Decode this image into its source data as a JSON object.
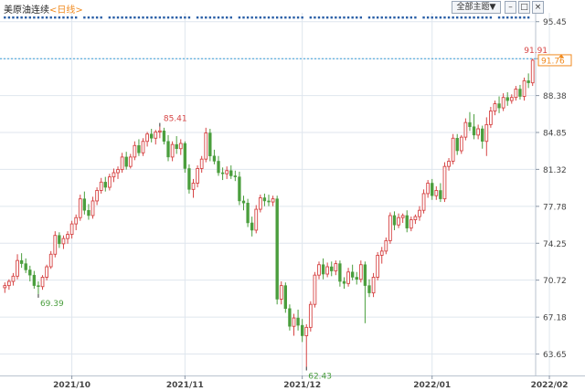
{
  "header": {
    "instrument": "美原油连续",
    "timeframe": "<日线>"
  },
  "toolbar": {
    "main_chart_select": "全部主题▼",
    "btn_minimize": "–",
    "btn_restore": "□",
    "btn_close": "×"
  },
  "colors": {
    "up": "#d64444",
    "down": "#4a9e3d",
    "grid": "#dfe6ee",
    "axis_text": "#444444",
    "last_price_bg": "#f08a1f",
    "event_dot": "#2a5fa6"
  },
  "chart_data": {
    "type": "candlestick",
    "title": "美原油连续 <日线>",
    "ylim": [
      61.6,
      96.3
    ],
    "y_ticks": [
      95.45,
      91.91,
      88.38,
      84.85,
      81.32,
      77.78,
      74.25,
      70.72,
      67.18,
      63.65
    ],
    "x_ticks": [
      {
        "label": "2021/10",
        "index": 16
      },
      {
        "label": "2021/11",
        "index": 43
      },
      {
        "label": "2021/12",
        "index": 71
      },
      {
        "label": "2022/01",
        "index": 102
      },
      {
        "label": "2022/02",
        "index": 130
      }
    ],
    "last_price": 91.76,
    "max_label": {
      "value": 91.91,
      "index": 130
    },
    "annotations": [
      {
        "text": "85.41",
        "index": 37,
        "value": 85.41,
        "type": "high"
      },
      {
        "text": "69.39",
        "index": 8,
        "value": 69.39,
        "type": "low"
      },
      {
        "text": "62.43",
        "index": 72,
        "value": 62.43,
        "type": "low"
      },
      {
        "text": "91.91",
        "index": 130,
        "value": 91.91,
        "type": "high"
      }
    ],
    "candles": [
      [
        70.0,
        70.5,
        69.5,
        70.2
      ],
      [
        70.2,
        70.8,
        69.8,
        70.6
      ],
      [
        70.6,
        71.4,
        70.2,
        71.1
      ],
      [
        71.1,
        73.2,
        70.8,
        72.6
      ],
      [
        72.6,
        73.3,
        71.9,
        72.3
      ],
      [
        72.3,
        72.8,
        71.4,
        71.7
      ],
      [
        71.7,
        72.1,
        70.6,
        71.2
      ],
      [
        71.2,
        71.6,
        69.9,
        70.2
      ],
      [
        70.2,
        70.6,
        69.39,
        70.1
      ],
      [
        70.1,
        71.2,
        69.8,
        71.0
      ],
      [
        71.0,
        72.2,
        70.7,
        72.0
      ],
      [
        72.0,
        73.5,
        71.8,
        73.2
      ],
      [
        73.2,
        75.4,
        72.9,
        75.0
      ],
      [
        75.0,
        75.3,
        73.8,
        74.2
      ],
      [
        74.2,
        75.0,
        73.7,
        74.7
      ],
      [
        74.7,
        75.4,
        74.2,
        75.1
      ],
      [
        75.1,
        76.4,
        74.7,
        76.1
      ],
      [
        76.1,
        77.0,
        75.5,
        76.7
      ],
      [
        76.7,
        78.9,
        76.4,
        78.5
      ],
      [
        78.5,
        79.2,
        77.0,
        77.4
      ],
      [
        77.4,
        78.0,
        76.5,
        76.9
      ],
      [
        76.9,
        78.7,
        76.6,
        78.3
      ],
      [
        78.3,
        79.6,
        77.9,
        79.3
      ],
      [
        79.3,
        80.5,
        79.0,
        80.1
      ],
      [
        80.1,
        80.6,
        79.2,
        79.6
      ],
      [
        79.6,
        80.9,
        79.3,
        80.6
      ],
      [
        80.6,
        81.4,
        80.1,
        81.0
      ],
      [
        81.0,
        81.6,
        80.4,
        81.3
      ],
      [
        81.3,
        82.9,
        81.0,
        82.5
      ],
      [
        82.5,
        83.0,
        81.3,
        81.6
      ],
      [
        81.6,
        82.8,
        81.4,
        82.5
      ],
      [
        82.5,
        84.0,
        82.2,
        83.6
      ],
      [
        83.6,
        84.2,
        82.6,
        82.9
      ],
      [
        82.9,
        84.3,
        82.6,
        84.0
      ],
      [
        84.0,
        84.9,
        83.5,
        84.7
      ],
      [
        84.7,
        85.2,
        83.9,
        84.3
      ],
      [
        84.3,
        85.1,
        83.7,
        84.9
      ],
      [
        84.9,
        85.41,
        84.3,
        85.0
      ],
      [
        85.0,
        85.3,
        83.7,
        84.0
      ],
      [
        84.0,
        84.6,
        82.1,
        82.5
      ],
      [
        82.5,
        84.0,
        82.1,
        83.7
      ],
      [
        83.7,
        84.5,
        82.8,
        83.3
      ],
      [
        83.3,
        84.2,
        82.7,
        83.8
      ],
      [
        83.8,
        84.0,
        81.0,
        81.4
      ],
      [
        81.4,
        81.8,
        79.0,
        79.4
      ],
      [
        79.4,
        80.4,
        78.6,
        80.0
      ],
      [
        80.0,
        81.7,
        79.6,
        81.4
      ],
      [
        81.4,
        82.6,
        81.0,
        82.3
      ],
      [
        82.3,
        85.3,
        82.0,
        84.8
      ],
      [
        84.8,
        85.2,
        82.1,
        82.6
      ],
      [
        82.6,
        83.2,
        81.8,
        82.1
      ],
      [
        82.1,
        82.6,
        80.7,
        81.0
      ],
      [
        81.0,
        81.5,
        80.3,
        80.9
      ],
      [
        80.9,
        81.6,
        80.4,
        81.2
      ],
      [
        81.2,
        81.7,
        80.4,
        80.7
      ],
      [
        80.7,
        81.2,
        80.2,
        80.6
      ],
      [
        80.6,
        81.1,
        77.9,
        78.3
      ],
      [
        78.3,
        78.8,
        77.4,
        78.1
      ],
      [
        78.1,
        78.5,
        75.8,
        76.2
      ],
      [
        76.2,
        76.8,
        74.9,
        75.5
      ],
      [
        75.5,
        77.9,
        75.2,
        77.5
      ],
      [
        77.5,
        78.9,
        77.2,
        78.6
      ],
      [
        78.6,
        79.0,
        77.8,
        78.3
      ],
      [
        78.3,
        78.9,
        77.8,
        78.2
      ],
      [
        78.2,
        78.8,
        77.8,
        78.5
      ],
      [
        78.5,
        78.8,
        68.4,
        68.9
      ],
      [
        68.9,
        70.6,
        68.4,
        70.2
      ],
      [
        70.2,
        70.5,
        67.6,
        68.0
      ],
      [
        68.0,
        68.4,
        65.9,
        66.3
      ],
      [
        66.3,
        67.5,
        65.4,
        67.1
      ],
      [
        67.1,
        67.9,
        65.9,
        66.4
      ],
      [
        66.4,
        67.0,
        64.8,
        65.4
      ],
      [
        65.4,
        66.5,
        62.43,
        66.2
      ],
      [
        66.2,
        68.7,
        65.8,
        68.4
      ],
      [
        68.4,
        71.5,
        68.1,
        71.2
      ],
      [
        71.2,
        72.5,
        70.8,
        72.2
      ],
      [
        72.2,
        72.8,
        70.8,
        71.3
      ],
      [
        71.3,
        72.4,
        71.0,
        72.0
      ],
      [
        72.0,
        72.5,
        71.1,
        71.6
      ],
      [
        71.6,
        72.6,
        71.2,
        72.3
      ],
      [
        72.3,
        72.6,
        70.1,
        70.6
      ],
      [
        70.6,
        71.0,
        69.9,
        70.4
      ],
      [
        70.4,
        71.9,
        70.1,
        71.5
      ],
      [
        71.5,
        72.2,
        70.7,
        71.0
      ],
      [
        71.0,
        71.5,
        70.3,
        70.8
      ],
      [
        70.8,
        72.6,
        70.5,
        72.2
      ],
      [
        72.2,
        72.5,
        66.6,
        70.2
      ],
      [
        70.2,
        70.8,
        69.1,
        69.5
      ],
      [
        69.5,
        71.4,
        69.1,
        71.0
      ],
      [
        71.0,
        73.4,
        70.7,
        73.1
      ],
      [
        73.1,
        73.9,
        72.3,
        73.5
      ],
      [
        73.5,
        74.8,
        73.2,
        74.5
      ],
      [
        74.5,
        77.2,
        74.2,
        76.9
      ],
      [
        76.9,
        77.3,
        75.5,
        76.0
      ],
      [
        76.0,
        77.1,
        75.7,
        76.7
      ],
      [
        76.7,
        77.1,
        76.2,
        76.9
      ],
      [
        76.9,
        77.4,
        75.3,
        75.7
      ],
      [
        75.7,
        76.8,
        75.4,
        76.5
      ],
      [
        76.5,
        77.0,
        76.1,
        76.8
      ],
      [
        76.8,
        77.8,
        76.4,
        77.4
      ],
      [
        77.4,
        79.4,
        77.1,
        79.0
      ],
      [
        79.0,
        80.3,
        78.6,
        80.0
      ],
      [
        80.0,
        80.4,
        78.4,
        78.8
      ],
      [
        78.8,
        79.7,
        78.4,
        79.3
      ],
      [
        79.3,
        80.0,
        78.2,
        78.5
      ],
      [
        78.5,
        82.0,
        78.2,
        81.6
      ],
      [
        81.6,
        82.4,
        81.2,
        82.1
      ],
      [
        82.1,
        84.7,
        81.8,
        84.3
      ],
      [
        84.3,
        84.7,
        82.7,
        83.1
      ],
      [
        83.1,
        84.6,
        82.8,
        84.4
      ],
      [
        84.4,
        86.2,
        84.1,
        85.8
      ],
      [
        85.8,
        86.8,
        85.0,
        85.4
      ],
      [
        85.4,
        86.6,
        84.2,
        84.6
      ],
      [
        84.6,
        85.6,
        84.2,
        85.2
      ],
      [
        85.2,
        85.5,
        83.3,
        84.0
      ],
      [
        84.0,
        86.3,
        82.6,
        85.6
      ],
      [
        85.6,
        87.3,
        85.3,
        86.9
      ],
      [
        86.9,
        87.9,
        86.5,
        87.6
      ],
      [
        87.6,
        88.3,
        86.7,
        87.2
      ],
      [
        87.2,
        88.6,
        86.9,
        88.2
      ],
      [
        88.2,
        88.7,
        87.4,
        87.9
      ],
      [
        87.9,
        88.5,
        87.6,
        88.2
      ],
      [
        88.2,
        89.3,
        87.9,
        89.0
      ],
      [
        89.0,
        89.4,
        88.0,
        88.3
      ],
      [
        88.3,
        90.1,
        87.9,
        89.8
      ],
      [
        89.8,
        90.5,
        89.1,
        89.6
      ],
      [
        89.6,
        91.91,
        89.3,
        91.76
      ]
    ]
  }
}
